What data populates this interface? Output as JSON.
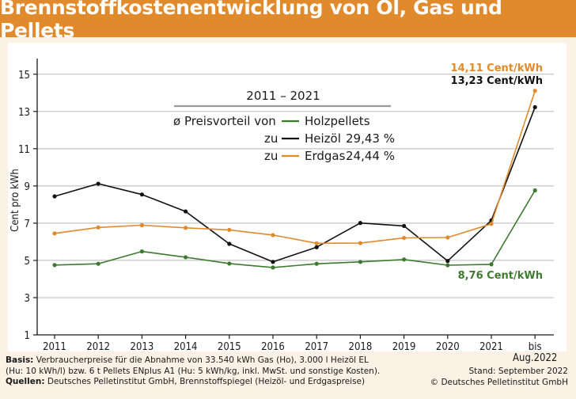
{
  "title": "Brennstoffkostenentwicklung von Öl, Gas und Pellets",
  "chart_data": {
    "type": "line",
    "ylabel": "Cent pro kWh",
    "ylim": [
      1,
      15.5
    ],
    "yticks": [
      "1",
      "3",
      "5",
      "7",
      "9",
      "11",
      "13",
      "15"
    ],
    "ytick_values": [
      1,
      3,
      5,
      7,
      9,
      11,
      13,
      15
    ],
    "categories": [
      "2011",
      "2012",
      "2013",
      "2014",
      "2015",
      "2016",
      "2017",
      "2018",
      "2019",
      "2020",
      "2021",
      "bis\nAug.2022"
    ],
    "series": [
      {
        "name": "Holzpellets",
        "color": "#3d7a2f",
        "values": [
          4.75,
          4.82,
          5.48,
          5.17,
          4.83,
          4.62,
          4.82,
          4.92,
          5.05,
          4.74,
          4.79,
          8.76
        ]
      },
      {
        "name": "Heizöl",
        "color": "#111111",
        "values": [
          8.44,
          9.12,
          8.54,
          7.63,
          5.89,
          4.92,
          5.71,
          7.01,
          6.85,
          4.97,
          7.15,
          13.23
        ]
      },
      {
        "name": "Erdgas",
        "color": "#e08a2c",
        "values": [
          6.45,
          6.77,
          6.89,
          6.75,
          6.64,
          6.36,
          5.92,
          5.93,
          6.21,
          6.23,
          6.96,
          14.11
        ]
      }
    ],
    "legend": {
      "period": "2011 – 2021",
      "intro": "ø Preisvorteil von",
      "rows": [
        {
          "prefix": "",
          "name": "Holzpellets",
          "value": ""
        },
        {
          "prefix": "zu",
          "name": "Heizöl",
          "value": "29,43 %"
        },
        {
          "prefix": "zu",
          "name": "Erdgas",
          "value": "24,44 %"
        }
      ]
    },
    "annotations": {
      "erdgas_end": "14,11 Cent/kWh",
      "heizoel_end": "13,23 Cent/kWh",
      "pellets_end": "8,76 Cent/kWh"
    },
    "grid": "horizontal"
  },
  "footer": {
    "basis_label": "Basis:",
    "basis_line1": "Verbraucherpreise für die Abnahme von 33.540 kWh Gas (Ho), 3.000 l Heizöl EL",
    "basis_line2": "(Hu: 10 kWh/l) bzw. 6 t Pellets ENplus A1 (Hu: 5 kWh/kg, inkl. MwSt. und sonstige Kosten).",
    "sources_label": "Quellen:",
    "sources_text": "Deutsches Pelletinstitut GmbH, Brennstoffspiegel (Heizöl- und Erdgaspreise)",
    "stand": "Stand: September 2022",
    "copyright": "© Deutsches Pelletinstitut GmbH"
  }
}
